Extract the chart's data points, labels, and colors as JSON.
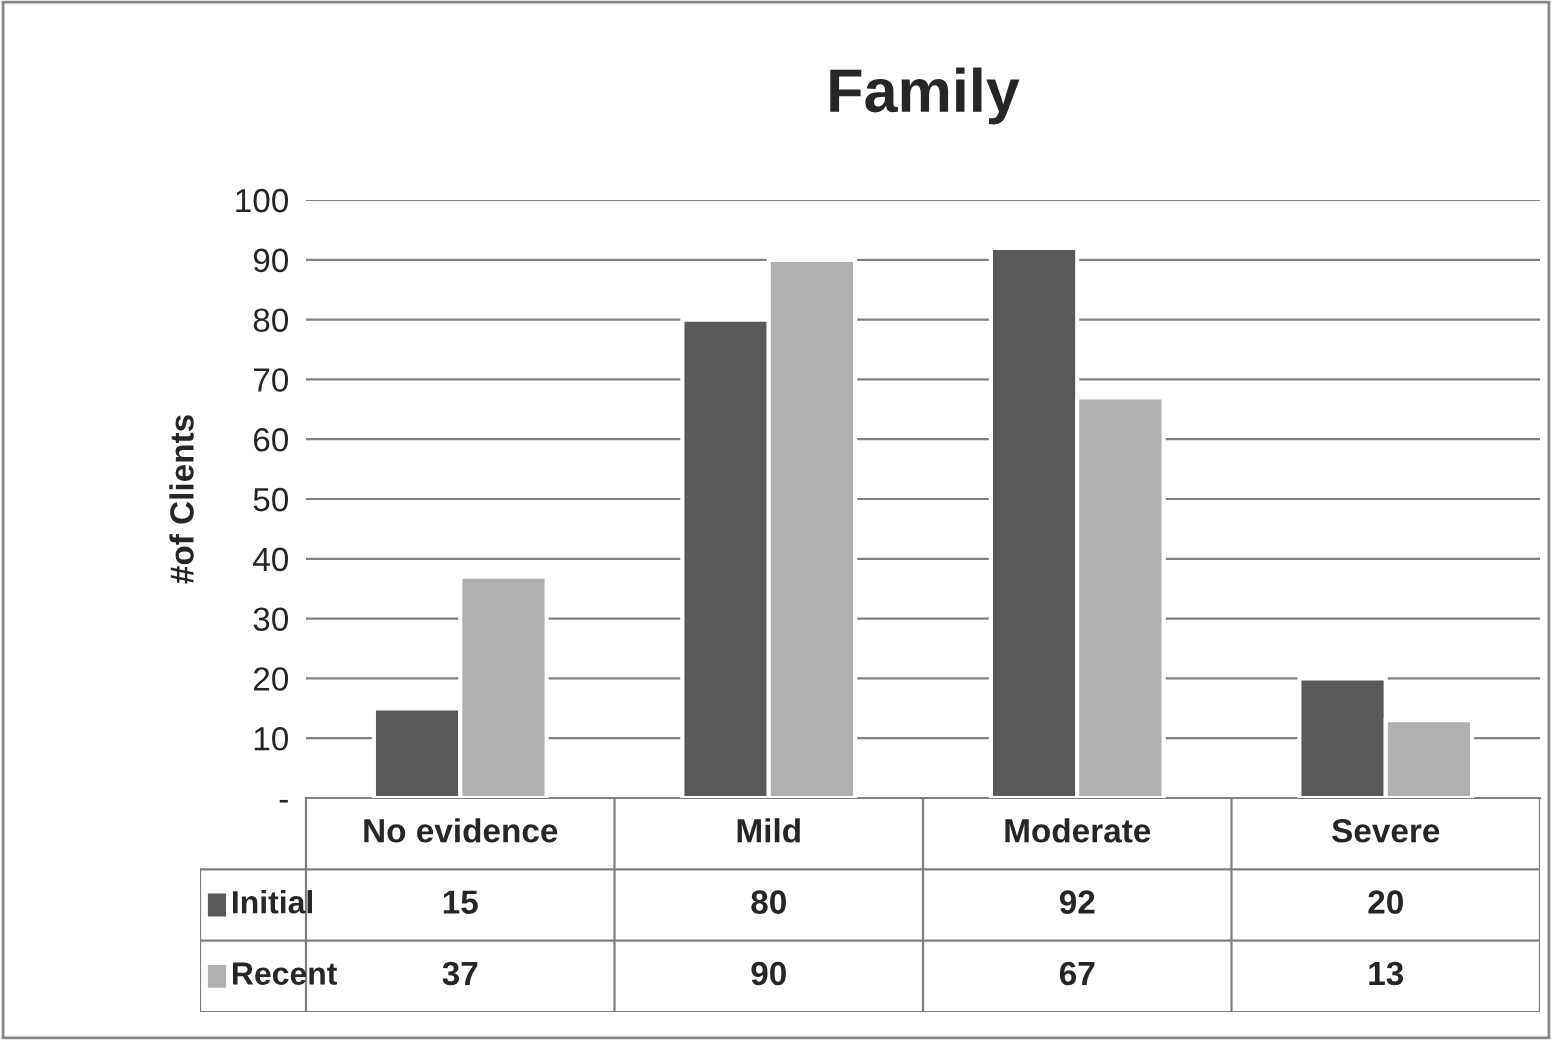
{
  "chart_data": {
    "type": "bar",
    "title": "Family",
    "ylabel": "#of Clients",
    "categories": [
      "No evidence",
      "Mild",
      "Moderate",
      "Severe"
    ],
    "series": [
      {
        "name": "Initial",
        "color": "#595959",
        "values": [
          15,
          80,
          92,
          20
        ]
      },
      {
        "name": "Recent",
        "color": "#b0b0b0",
        "values": [
          37,
          90,
          67,
          13
        ]
      }
    ],
    "ylim": [
      0,
      100
    ],
    "yticks": [
      {
        "value": 0,
        "label": "-"
      },
      10,
      20,
      30,
      40,
      50,
      60,
      70,
      80,
      90,
      100
    ],
    "grid": "y",
    "data_labels": true,
    "legend": "bottom"
  }
}
